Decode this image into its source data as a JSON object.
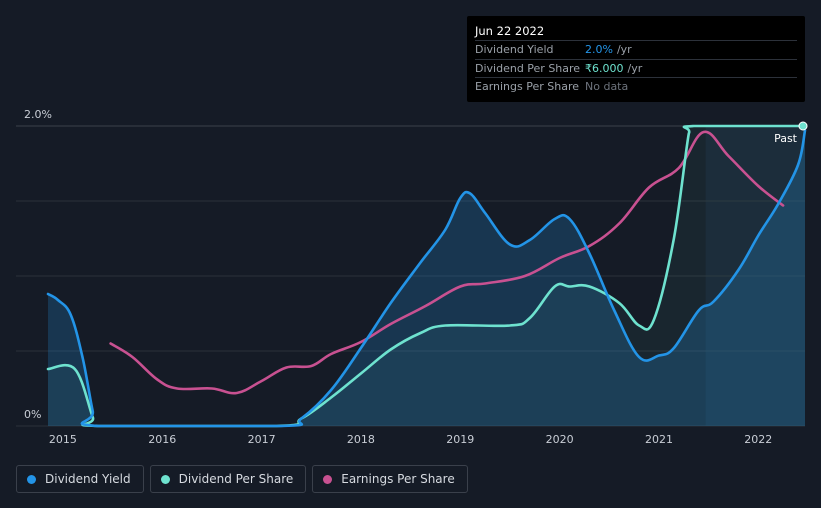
{
  "tooltip": {
    "date": "Jun 22 2022",
    "rows": [
      {
        "label": "Dividend Yield",
        "value": "2.0%",
        "unit": "/yr",
        "color": "#2394e7"
      },
      {
        "label": "Dividend Per Share",
        "value": "₹6.000",
        "unit": "/yr",
        "color": "#6ee2cf"
      },
      {
        "label": "Earnings Per Share",
        "value": "No data",
        "unit": "",
        "color": "#6d737c"
      }
    ]
  },
  "past_label": "Past",
  "legend": [
    {
      "label": "Dividend Yield",
      "color": "#2394e7"
    },
    {
      "label": "Dividend Per Share",
      "color": "#6ee2cf"
    },
    {
      "label": "Earnings Per Share",
      "color": "#c85191"
    }
  ],
  "chart_data": {
    "type": "line",
    "xlim": [
      2014.85,
      2022.47
    ],
    "ylim": [
      0,
      2.0
    ],
    "y_tick_labels": [
      {
        "value": 2.0,
        "label": "2.0%"
      },
      {
        "value": 0,
        "label": "0%"
      }
    ],
    "x_ticks": [
      2015,
      2016,
      2017,
      2018,
      2019,
      2020,
      2021,
      2022
    ],
    "grid": true,
    "past_region_start": 2021.47,
    "series": [
      {
        "name": "Dividend Yield",
        "color": "#2394e7",
        "fill": true,
        "points": [
          [
            2014.85,
            0.88
          ],
          [
            2014.95,
            0.84
          ],
          [
            2015.08,
            0.74
          ],
          [
            2015.2,
            0.45
          ],
          [
            2015.3,
            0.1
          ],
          [
            2015.35,
            0
          ],
          [
            2017.2,
            0
          ],
          [
            2017.4,
            0.05
          ],
          [
            2017.7,
            0.24
          ],
          [
            2018.0,
            0.52
          ],
          [
            2018.3,
            0.82
          ],
          [
            2018.6,
            1.09
          ],
          [
            2018.85,
            1.31
          ],
          [
            2019.0,
            1.52
          ],
          [
            2019.1,
            1.55
          ],
          [
            2019.25,
            1.42
          ],
          [
            2019.5,
            1.21
          ],
          [
            2019.7,
            1.24
          ],
          [
            2019.95,
            1.38
          ],
          [
            2020.1,
            1.38
          ],
          [
            2020.3,
            1.15
          ],
          [
            2020.55,
            0.77
          ],
          [
            2020.8,
            0.46
          ],
          [
            2021.0,
            0.47
          ],
          [
            2021.15,
            0.52
          ],
          [
            2021.4,
            0.77
          ],
          [
            2021.55,
            0.83
          ],
          [
            2021.8,
            1.04
          ],
          [
            2022.0,
            1.27
          ],
          [
            2022.2,
            1.48
          ],
          [
            2022.4,
            1.74
          ],
          [
            2022.47,
            1.97
          ]
        ]
      },
      {
        "name": "Dividend Per Share",
        "color": "#6ee2cf",
        "fill": true,
        "points": [
          [
            2014.85,
            0.38
          ],
          [
            2015.12,
            0.38
          ],
          [
            2015.3,
            0.06
          ],
          [
            2015.35,
            0
          ],
          [
            2017.15,
            0
          ],
          [
            2017.4,
            0.05
          ],
          [
            2017.7,
            0.19
          ],
          [
            2018.0,
            0.35
          ],
          [
            2018.3,
            0.51
          ],
          [
            2018.6,
            0.62
          ],
          [
            2018.85,
            0.67
          ],
          [
            2019.5,
            0.67
          ],
          [
            2019.7,
            0.72
          ],
          [
            2019.95,
            0.93
          ],
          [
            2020.1,
            0.93
          ],
          [
            2020.3,
            0.93
          ],
          [
            2020.6,
            0.82
          ],
          [
            2020.8,
            0.67
          ],
          [
            2020.95,
            0.71
          ],
          [
            2021.15,
            1.25
          ],
          [
            2021.3,
            1.95
          ],
          [
            2021.35,
            2.0
          ],
          [
            2022.47,
            2.0
          ]
        ]
      },
      {
        "name": "Earnings Per Share",
        "color": "#c85191",
        "fill": false,
        "points": [
          [
            2015.48,
            0.55
          ],
          [
            2015.7,
            0.46
          ],
          [
            2015.95,
            0.31
          ],
          [
            2016.15,
            0.25
          ],
          [
            2016.5,
            0.25
          ],
          [
            2016.75,
            0.22
          ],
          [
            2017.0,
            0.3
          ],
          [
            2017.25,
            0.39
          ],
          [
            2017.5,
            0.4
          ],
          [
            2017.7,
            0.48
          ],
          [
            2018.0,
            0.56
          ],
          [
            2018.3,
            0.68
          ],
          [
            2018.65,
            0.8
          ],
          [
            2019.0,
            0.93
          ],
          [
            2019.25,
            0.95
          ],
          [
            2019.65,
            1.0
          ],
          [
            2020.0,
            1.12
          ],
          [
            2020.3,
            1.2
          ],
          [
            2020.6,
            1.35
          ],
          [
            2020.9,
            1.59
          ],
          [
            2021.2,
            1.72
          ],
          [
            2021.45,
            1.96
          ],
          [
            2021.7,
            1.8
          ],
          [
            2022.0,
            1.6
          ],
          [
            2022.25,
            1.47
          ]
        ]
      }
    ]
  }
}
